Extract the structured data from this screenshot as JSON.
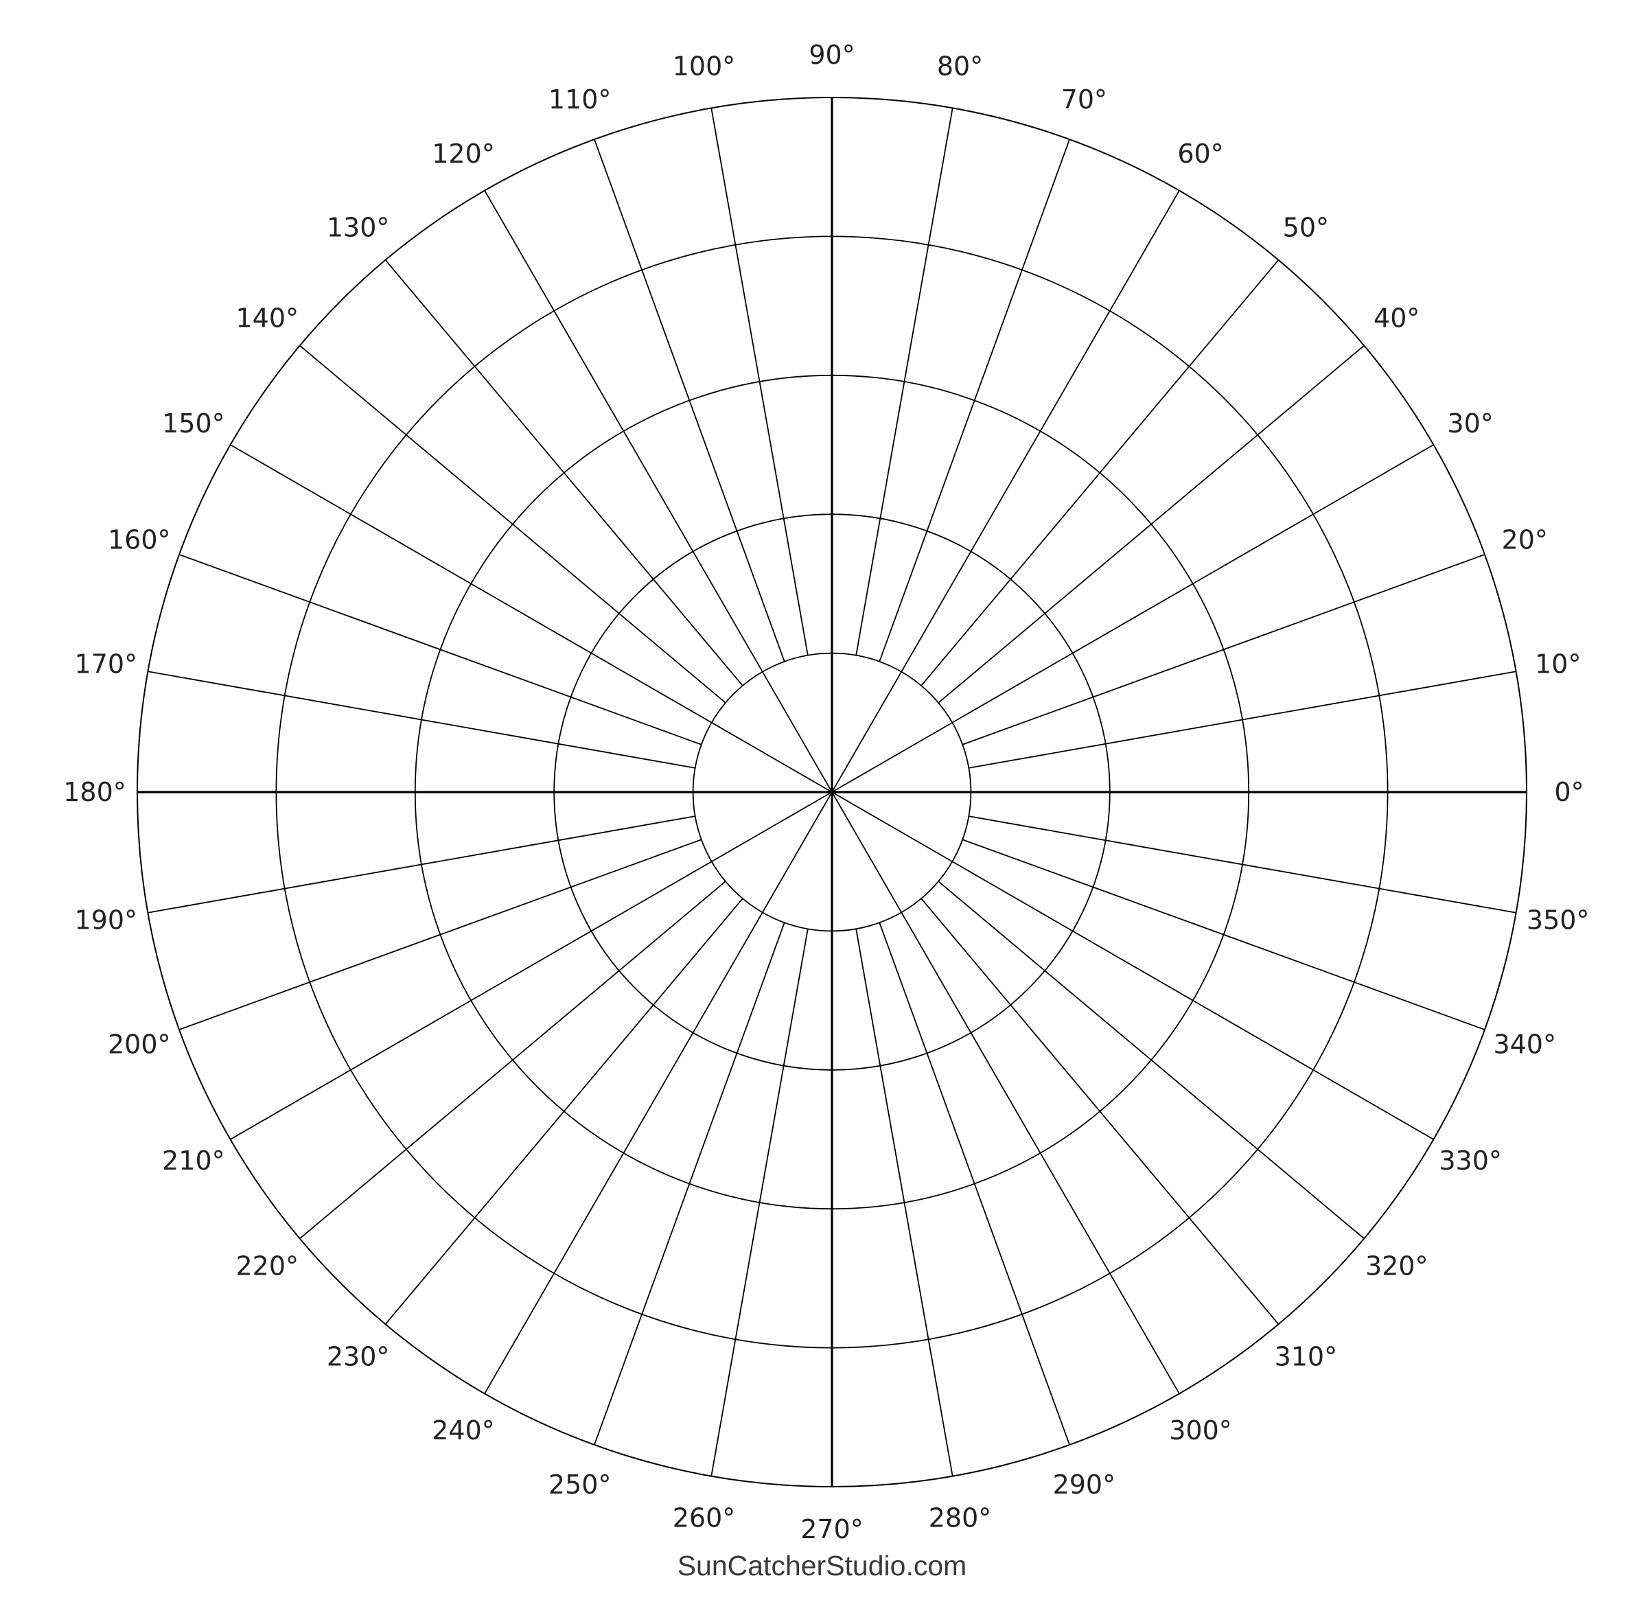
{
  "grid": {
    "stroke_color": "#000000",
    "background": "#ffffff",
    "ring_count": 5,
    "spoke_step_degrees": 10,
    "angle_labels": [
      "0°",
      "10°",
      "20°",
      "30°",
      "40°",
      "50°",
      "60°",
      "70°",
      "80°",
      "90°",
      "100°",
      "110°",
      "120°",
      "130°",
      "140°",
      "150°",
      "160°",
      "170°",
      "180°",
      "190°",
      "200°",
      "210°",
      "220°",
      "230°",
      "240°",
      "250°",
      "260°",
      "270°",
      "280°",
      "290°",
      "300°",
      "310°",
      "320°",
      "330°",
      "340°",
      "350°"
    ]
  },
  "footer": {
    "watermark": "SunCatcherStudio.com"
  }
}
